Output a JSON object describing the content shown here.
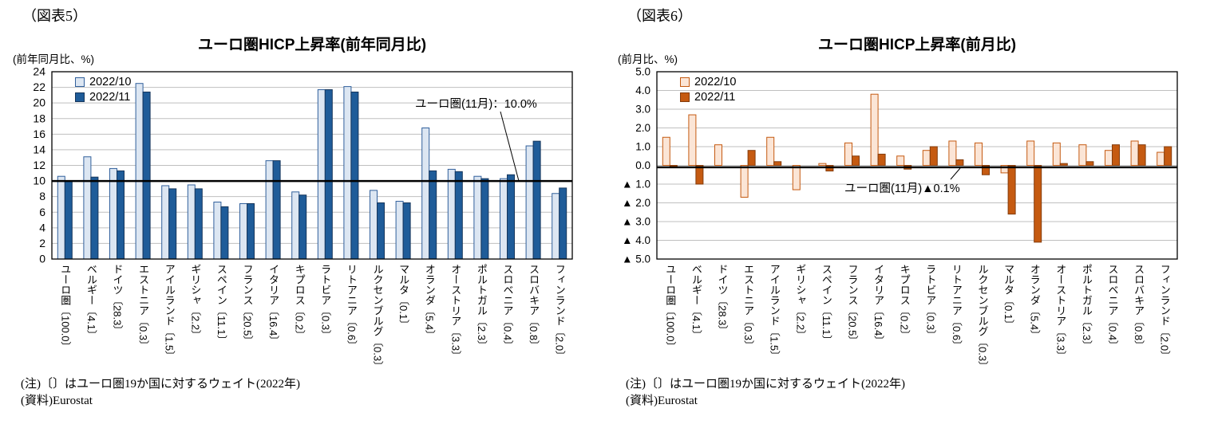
{
  "charts": [
    {
      "fig_label": "（図表5）",
      "title": "ユーロ圏HICP上昇率(前年同月比)",
      "unit_label": "(前年同月比、%)",
      "annotation": "ユーロ圏(11月)：10.0%",
      "notes": [
        "(注)〔〕はユーロ圏19か国に対するウェイト(2022年)",
        "(資料)Eurostat"
      ],
      "chart_data": {
        "type": "bar",
        "categories": [
          "ユーロ圏〔100.0〕",
          "ベルギー〔4.1〕",
          "ドイツ〔28.3〕",
          "エストニア〔0.3〕",
          "アイルランド〔1.5〕",
          "ギリシャ〔2.2〕",
          "スペイン〔11.1〕",
          "フランス〔20.5〕",
          "イタリア〔16.4〕",
          "キプロス〔0.2〕",
          "ラトビア〔0.3〕",
          "リトアニア〔0.6〕",
          "ルクセンブルグ〔0.3〕",
          "マルタ〔0.1〕",
          "オランダ〔5.4〕",
          "オーストリア〔3.3〕",
          "ポルトガル〔2.3〕",
          "スロベニア〔0.4〕",
          "スロバキア〔0.8〕",
          "フィンランド〔2.0〕"
        ],
        "series": [
          {
            "name": "2022/10",
            "values": [
              10.6,
              13.1,
              11.6,
              22.5,
              9.4,
              9.5,
              7.3,
              7.1,
              12.6,
              8.6,
              21.7,
              22.1,
              8.8,
              7.4,
              16.8,
              11.5,
              10.6,
              10.3,
              14.5,
              8.4
            ]
          },
          {
            "name": "2022/11",
            "values": [
              10.0,
              10.5,
              11.3,
              21.4,
              9.0,
              9.0,
              6.7,
              7.1,
              12.6,
              8.2,
              21.7,
              21.4,
              7.2,
              7.2,
              11.3,
              11.2,
              10.3,
              10.8,
              15.1,
              9.1
            ]
          }
        ],
        "ylim": [
          0,
          24
        ],
        "ytick_step": 2,
        "ytick_format": "integer",
        "grid": true,
        "legend_position": "top-left-inside",
        "reference_line": 10.0,
        "colors": {
          "series1_fill": "#dce6f2",
          "series1_border": "#31609c",
          "series2_fill": "#1f5c99",
          "series2_border": "#16365c"
        }
      }
    },
    {
      "fig_label": "（図表6）",
      "title": "ユーロ圏HICP上昇率(前月比)",
      "unit_label": "(前月比、%)",
      "annotation": "ユーロ圏(11月)▲0.1%",
      "notes": [
        "(注)〔〕はユーロ圏19か国に対するウェイト(2022年)",
        "(資料)Eurostat"
      ],
      "chart_data": {
        "type": "bar",
        "categories": [
          "ユーロ圏〔100.0〕",
          "ベルギー〔4.1〕",
          "ドイツ〔28.3〕",
          "エストニア〔0.3〕",
          "アイルランド〔1.5〕",
          "ギリシャ〔2.2〕",
          "スペイン〔11.1〕",
          "フランス〔20.5〕",
          "イタリア〔16.4〕",
          "キプロス〔0.2〕",
          "ラトビア〔0.3〕",
          "リトアニア〔0.6〕",
          "ルクセンブルグ〔0.3〕",
          "マルタ〔0.1〕",
          "オランダ〔5.4〕",
          "オーストリア〔3.3〕",
          "ポルトガル〔2.3〕",
          "スロベニア〔0.4〕",
          "スロバキア〔0.8〕",
          "フィンランド〔2.0〕"
        ],
        "series": [
          {
            "name": "2022/10",
            "values": [
              1.5,
              2.7,
              1.1,
              -1.7,
              1.5,
              -1.3,
              0.1,
              1.2,
              3.8,
              0.5,
              0.8,
              1.3,
              1.2,
              -0.4,
              1.3,
              1.2,
              1.1,
              0.8,
              1.3,
              0.7
            ]
          },
          {
            "name": "2022/11",
            "values": [
              -0.1,
              -1.0,
              0.0,
              0.8,
              0.2,
              0.0,
              -0.3,
              0.5,
              0.6,
              -0.2,
              1.0,
              0.3,
              -0.5,
              -2.6,
              -4.1,
              0.1,
              0.2,
              1.1,
              1.1,
              1.0
            ]
          }
        ],
        "ylim": [
          -5,
          5
        ],
        "ytick_step": 1,
        "ytick_format": "triangle_decimal",
        "grid": true,
        "legend_position": "top-left-inside",
        "reference_line": -0.1,
        "colors": {
          "series1_fill": "#fbe5d6",
          "series1_border": "#c55a11",
          "series2_fill": "#c55a11",
          "series2_border": "#843c0c"
        }
      }
    }
  ]
}
